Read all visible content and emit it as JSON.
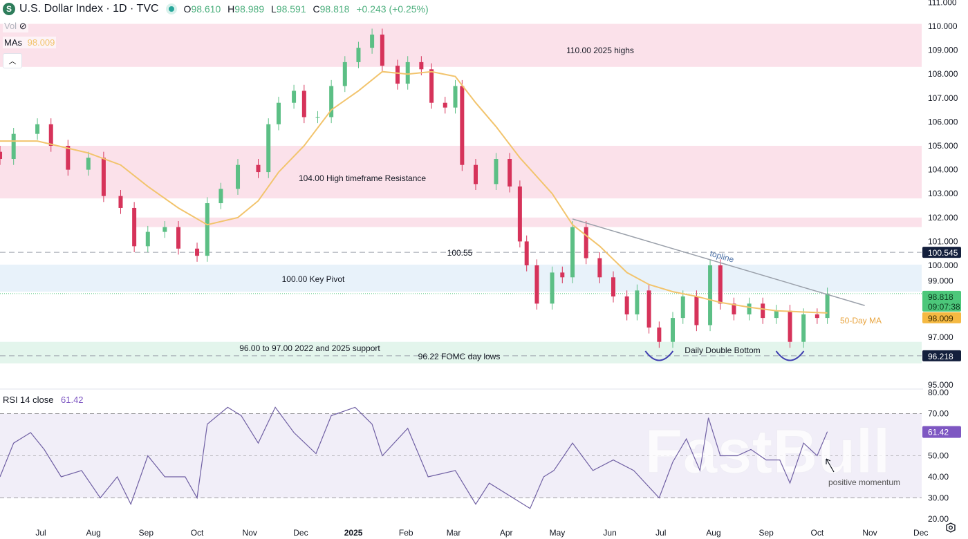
{
  "header": {
    "logo_letter": "S",
    "title": "U.S. Dollar Index · 1D · TVC",
    "open_label": "O",
    "open": "98.610",
    "high_label": "H",
    "high": "98.989",
    "low_label": "L",
    "low": "98.591",
    "close_label": "C",
    "close": "98.818",
    "change": "+0.243 (+0.25%)"
  },
  "legend": {
    "vol_label": "Vol",
    "vol_icon": "eye-off-icon",
    "mas_label": "MAs",
    "mas_value": "98.009",
    "collapse_icon": "chevron-up-icon"
  },
  "colors": {
    "up": "#5cbf85",
    "down": "#d6335a",
    "ma": "#f2c46d",
    "rsi": "#6f5fa3",
    "resistance_zone": "#fbe1ea",
    "pivot_zone": "#e8f2fa",
    "support_zone": "#e3f5ec",
    "label_dark": "#131f3c",
    "last_price": "#4cc77a",
    "ma_badge": "#f5b942",
    "rsi_badge": "#7e57c2"
  },
  "chart_data": [
    {
      "type": "candlestick",
      "title": "U.S. Dollar Index · 1D · TVC",
      "y_axis_ticks": [
        "111.000",
        "110.000",
        "109.000",
        "108.000",
        "107.000",
        "106.000",
        "105.000",
        "104.000",
        "103.000",
        "102.000",
        "101.000",
        "100.000",
        "99.000",
        "97.000",
        "95.000"
      ],
      "ylim": [
        95,
        111
      ],
      "x_ticks": [
        "Jul",
        "Aug",
        "Sep",
        "Oct",
        "Nov",
        "Dec",
        "2025",
        "Feb",
        "Mar",
        "Apr",
        "May",
        "Jun",
        "Jul",
        "Aug",
        "Sep",
        "Oct",
        "Nov",
        "Dec"
      ],
      "x_tick_dates": [
        "2024-07-01",
        "2024-08-01",
        "2024-09-01",
        "2024-10-01",
        "2024-11-01",
        "2024-12-01",
        "2025-01-01",
        "2025-02-01",
        "2025-03-01",
        "2025-04-01",
        "2025-05-01",
        "2025-06-01",
        "2025-07-01",
        "2025-08-01",
        "2025-09-01",
        "2025-10-01",
        "2025-11-01",
        "2025-12-01"
      ],
      "price": {
        "dates": [
          "2024-06-07",
          "2024-06-15",
          "2024-06-29",
          "2024-07-07",
          "2024-07-17",
          "2024-07-29",
          "2024-08-07",
          "2024-08-17",
          "2024-08-25",
          "2024-09-02",
          "2024-09-12",
          "2024-09-20",
          "2024-10-01",
          "2024-10-07",
          "2024-10-15",
          "2024-10-25",
          "2024-11-06",
          "2024-11-12",
          "2024-11-18",
          "2024-11-27",
          "2024-12-03",
          "2024-12-11",
          "2024-12-19",
          "2024-12-27",
          "2025-01-04",
          "2025-01-12",
          "2025-01-18",
          "2025-01-27",
          "2025-02-02",
          "2025-02-10",
          "2025-02-16",
          "2025-02-24",
          "2025-03-02",
          "2025-03-06",
          "2025-03-14",
          "2025-03-26",
          "2025-04-03",
          "2025-04-09",
          "2025-04-13",
          "2025-04-19",
          "2025-04-28",
          "2025-05-04",
          "2025-05-10",
          "2025-05-18",
          "2025-05-26",
          "2025-06-03",
          "2025-06-11",
          "2025-06-17",
          "2025-06-24",
          "2025-06-30",
          "2025-07-08",
          "2025-07-14",
          "2025-07-22",
          "2025-07-30",
          "2025-08-05",
          "2025-08-13",
          "2025-08-22",
          "2025-08-30",
          "2025-09-07",
          "2025-09-15",
          "2025-09-23",
          "2025-10-01",
          "2025-10-07"
        ],
        "close": [
          104.45,
          105.5,
          105.9,
          105.0,
          104.0,
          104.5,
          102.9,
          102.4,
          100.8,
          101.4,
          101.6,
          100.7,
          100.4,
          102.6,
          103.2,
          104.2,
          103.9,
          105.9,
          106.8,
          107.3,
          106.2,
          106.2,
          107.5,
          108.5,
          109.1,
          109.65,
          108.35,
          107.6,
          108.5,
          108.2,
          106.8,
          106.6,
          107.5,
          104.2,
          103.4,
          104.45,
          103.3,
          101.0,
          100.0,
          98.4,
          99.7,
          99.5,
          101.6,
          100.3,
          99.5,
          98.7,
          97.95,
          98.95,
          97.4,
          96.8,
          97.8,
          98.7,
          97.5,
          100.0,
          98.4,
          97.95,
          98.4,
          97.8,
          98.1,
          96.8,
          97.95,
          97.8,
          98.818
        ]
      },
      "ma_50": {
        "name": "50-Day MA",
        "dates": [
          "2024-06-07",
          "2024-06-29",
          "2024-07-17",
          "2024-07-29",
          "2024-08-17",
          "2024-09-02",
          "2024-09-20",
          "2024-10-07",
          "2024-10-25",
          "2024-11-06",
          "2024-11-18",
          "2024-12-03",
          "2024-12-19",
          "2025-01-04",
          "2025-01-18",
          "2025-02-02",
          "2025-02-16",
          "2025-03-02",
          "2025-03-14",
          "2025-03-26",
          "2025-04-09",
          "2025-04-28",
          "2025-05-10",
          "2025-05-26",
          "2025-06-11",
          "2025-06-24",
          "2025-07-08",
          "2025-07-22",
          "2025-08-05",
          "2025-08-22",
          "2025-09-07",
          "2025-09-23",
          "2025-10-07"
        ],
        "values": [
          105.2,
          105.2,
          104.9,
          104.7,
          104.2,
          103.3,
          102.4,
          101.7,
          102.0,
          102.7,
          103.9,
          105.0,
          106.5,
          107.3,
          108.1,
          108.0,
          108.1,
          107.9,
          106.8,
          105.8,
          104.5,
          103.0,
          101.7,
          100.8,
          99.7,
          99.2,
          98.9,
          98.7,
          98.45,
          98.25,
          98.1,
          98.05,
          98.009
        ]
      },
      "zones": [
        {
          "label": "110.00 2025 highs",
          "from": 108.3,
          "to": 110.1,
          "kind": "resistance"
        },
        {
          "label": "104.00 High timeframe Resistance",
          "from": 102.8,
          "to": 105.0,
          "kind": "resistance"
        },
        {
          "label": "",
          "from": 101.6,
          "to": 102.0,
          "kind": "resistance",
          "start": "2024-08-25"
        },
        {
          "label": "100.00 Key Pivot",
          "from": 98.9,
          "to": 100.03,
          "kind": "pivot"
        },
        {
          "label": "96.00 to 97.00 2022 and 2025 support",
          "from": 95.9,
          "to": 96.8,
          "kind": "support"
        }
      ],
      "levels": [
        {
          "label": "100.55",
          "value": 100.545,
          "badge": "100.545"
        },
        {
          "label": "96.22 FOMC day lows",
          "value": 96.218,
          "badge": "96.218"
        }
      ],
      "trendline": {
        "label": "topline",
        "start": [
          "2025-05-10",
          101.94
        ],
        "end": [
          "2025-10-29",
          98.32
        ]
      },
      "annotations": {
        "double_bottom": "Daily Double Bottom",
        "ma_label": "50-Day MA"
      },
      "double_bottom_dates": [
        "2025-06-30",
        "2025-09-15"
      ],
      "last_price_badge": {
        "value": "98.818",
        "countdown": "09:07:38"
      },
      "ma_badge": "98.009"
    },
    {
      "type": "line",
      "title": "RSI 14 close",
      "legend": {
        "label": "RSI",
        "params": "14 close",
        "value": "61.42"
      },
      "ylim": [
        20,
        80
      ],
      "y_axis_ticks": [
        "80.00",
        "70.00",
        "50.00",
        "40.00",
        "30.00",
        "20.00"
      ],
      "bands": [
        30,
        70
      ],
      "midline": 50,
      "dates": [
        "2024-06-07",
        "2024-06-15",
        "2024-06-25",
        "2024-07-03",
        "2024-07-13",
        "2024-07-25",
        "2024-08-05",
        "2024-08-15",
        "2024-08-23",
        "2024-09-02",
        "2024-09-12",
        "2024-09-24",
        "2024-10-01",
        "2024-10-07",
        "2024-10-19",
        "2024-10-27",
        "2024-11-06",
        "2024-11-16",
        "2024-11-27",
        "2024-12-10",
        "2024-12-19",
        "2025-01-02",
        "2025-01-12",
        "2025-01-18",
        "2025-02-02",
        "2025-02-14",
        "2025-03-02",
        "2025-03-14",
        "2025-03-22",
        "2025-04-05",
        "2025-04-15",
        "2025-04-23",
        "2025-04-29",
        "2025-05-10",
        "2025-05-22",
        "2025-06-03",
        "2025-06-15",
        "2025-06-30",
        "2025-07-08",
        "2025-07-16",
        "2025-07-24",
        "2025-07-29",
        "2025-08-05",
        "2025-08-15",
        "2025-08-23",
        "2025-09-01",
        "2025-09-09",
        "2025-09-15",
        "2025-09-23",
        "2025-10-01",
        "2025-10-07"
      ],
      "values": [
        40,
        56,
        61,
        53,
        40,
        43,
        30,
        40,
        27,
        50,
        40,
        40,
        30,
        65,
        73,
        69,
        56,
        73,
        61,
        51,
        69,
        73,
        65,
        50,
        63,
        40,
        43,
        27,
        37,
        30,
        25,
        40,
        43,
        56,
        43,
        48,
        43,
        30,
        47,
        58,
        43,
        68,
        50,
        50,
        53,
        48,
        48,
        37,
        56,
        50,
        61.42
      ],
      "annotation": "positive momentum",
      "badge": "61.42"
    }
  ],
  "watermark": "FastBull"
}
